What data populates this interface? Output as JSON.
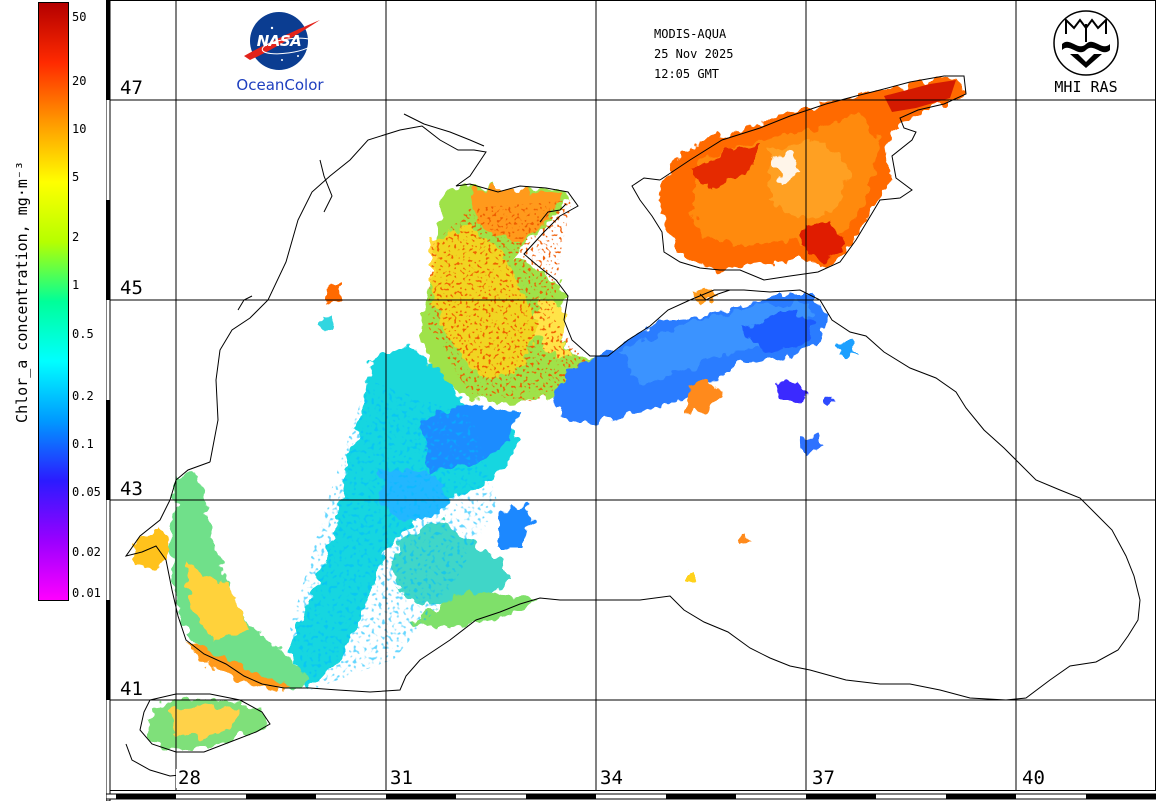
{
  "header": {
    "sensor": "MODIS-AQUA",
    "date": "25 Nov 2025",
    "time": "12:05 GMT"
  },
  "logos": {
    "left": {
      "name": "NASA",
      "caption": "OceanColor"
    },
    "right": {
      "name": "MHI RAS mark",
      "caption": "MHI RAS"
    }
  },
  "colorbar": {
    "label": "Chlor_a concentration, mg·m⁻³",
    "scale": "logarithmic",
    "min": 0.01,
    "max": 64,
    "ticks": [
      "50",
      "20",
      "10",
      "5",
      "2",
      "1",
      "0.5",
      "0.2",
      "0.1",
      "0.05",
      "0.02",
      "0.01"
    ],
    "colors": [
      "#ff00ff",
      "#9900ff",
      "#2b1bff",
      "#0099ff",
      "#00ffff",
      "#00ff99",
      "#b6ff00",
      "#ffff00",
      "#ff9900",
      "#ff2a00",
      "#b40000"
    ]
  },
  "grid": {
    "latitudes": [
      "47",
      "45",
      "43",
      "41"
    ],
    "longitudes": [
      "28",
      "31",
      "34",
      "37",
      "40"
    ]
  },
  "map": {
    "region": "Black Sea",
    "land_color": "#ffffff",
    "coastline_color": "#000000",
    "grid_color": "#000000"
  }
}
